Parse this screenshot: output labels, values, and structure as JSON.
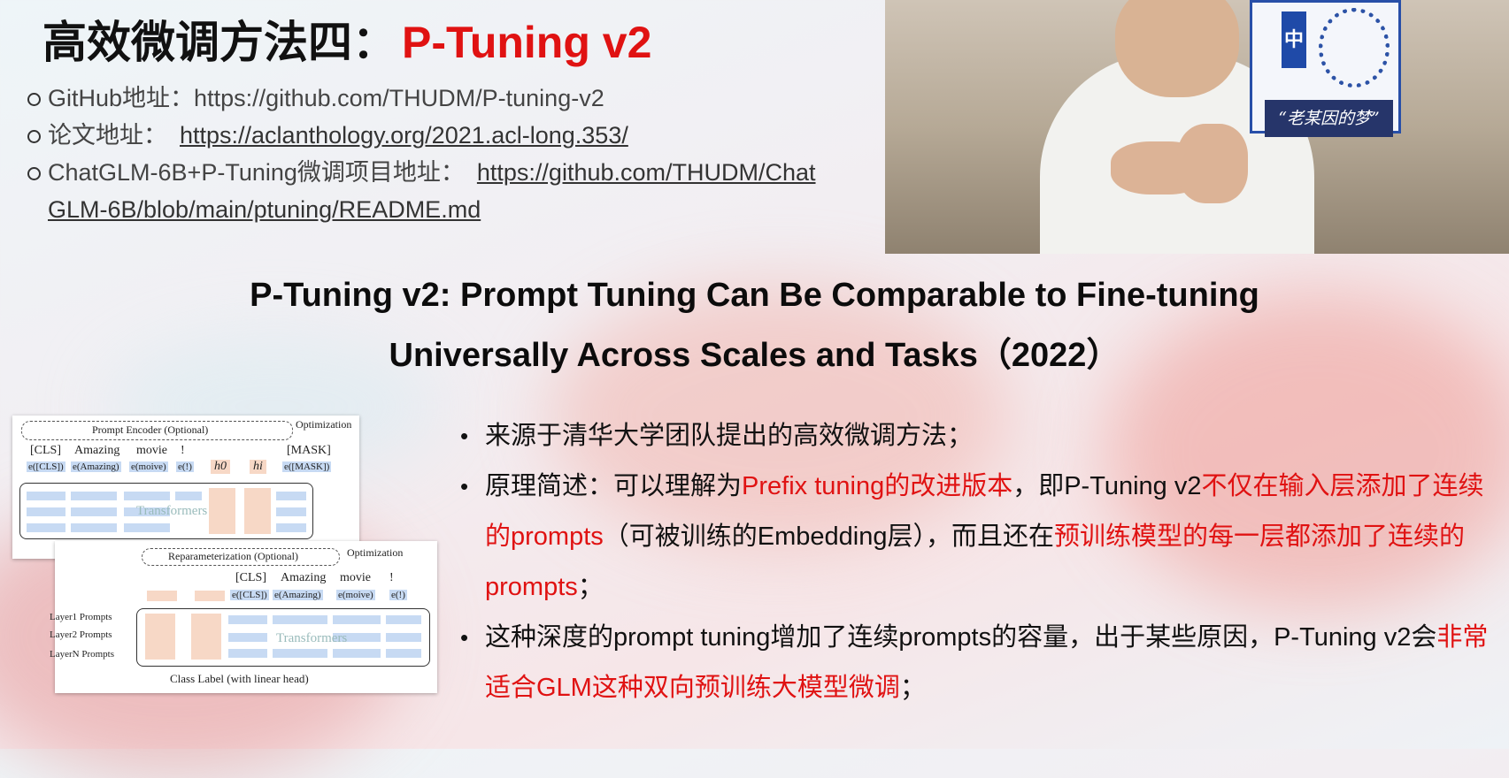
{
  "slide": {
    "title_prefix": "高效微调方法四：",
    "title_highlight": "P-Tuning v2",
    "links": [
      {
        "label": "GitHub地址：",
        "url": "https://github.com/THUDM/P-tuning-v2",
        "underlined": false
      },
      {
        "label": "论文地址：",
        "url": "https://aclanthology.org/2021.acl-long.353/",
        "underlined": true
      },
      {
        "label": "ChatGLM-6B+P-Tuning微调项目地址：",
        "url": "https://github.com/THUDM/ChatGLM-6B/blob/main/ptuning/README.md",
        "underlined": true
      }
    ],
    "paper_heading_line1": "P-Tuning v2: Prompt Tuning Can Be Comparable to Fine-tuning",
    "paper_heading_line2": "Universally Across Scales and Tasks（2022）",
    "bullet1": "来源于清华大学团队提出的高效微调方法；",
    "bullet2": {
      "p1": "原理简述：可以理解为",
      "h1": "Prefix tuning的改进版本",
      "p2": "，即P-Tuning v2",
      "h2": "不仅在输入层添加了连续的prompts",
      "p3": "（可被训练的Embedding层），而且还在",
      "h3": "预训练模型的每一层都添加了连续的prompts",
      "p4": "；"
    },
    "bullet3": {
      "p1": "这种深度的prompt tuning增加了连续prompts的容量，出于某些原因，P-Tuning v2会",
      "h1": "非常适合GLM这种双向预训练大模型微调",
      "p2": "；"
    }
  },
  "video": {
    "poster_char": "中",
    "poster_caption": "“老某因的梦”"
  },
  "diagram_top": {
    "encoder_label": "Prompt Encoder (Optional)",
    "optimization_label": "Optimization",
    "tokens": [
      "[CLS]",
      "Amazing",
      "movie",
      "!",
      "[MASK]"
    ],
    "embeddings": [
      "e([CLS])",
      "e(Amazing)",
      "e(moive)",
      "e(!)",
      "e([MASK])"
    ],
    "h0": "h0",
    "hi": "hi",
    "transformers_label": "Transformers"
  },
  "diagram_bottom": {
    "reparam_label": "Reparameterization (Optional)",
    "optimization_label": "Optimization",
    "tokens": [
      "[CLS]",
      "Amazing",
      "movie",
      "!"
    ],
    "embeddings": [
      "e([CLS])",
      "e(Amazing)",
      "e(moive)",
      "e(!)"
    ],
    "layers": [
      "Layer1 Prompts",
      "Layer2 Prompts",
      "LayerN Prompts"
    ],
    "transformers_label": "Transformers",
    "class_label": "Class Label (with linear head)"
  },
  "colors": {
    "accent_red": "#e01212",
    "cell_blue": "#c7daf3",
    "cell_peach": "#f7d8c6"
  }
}
